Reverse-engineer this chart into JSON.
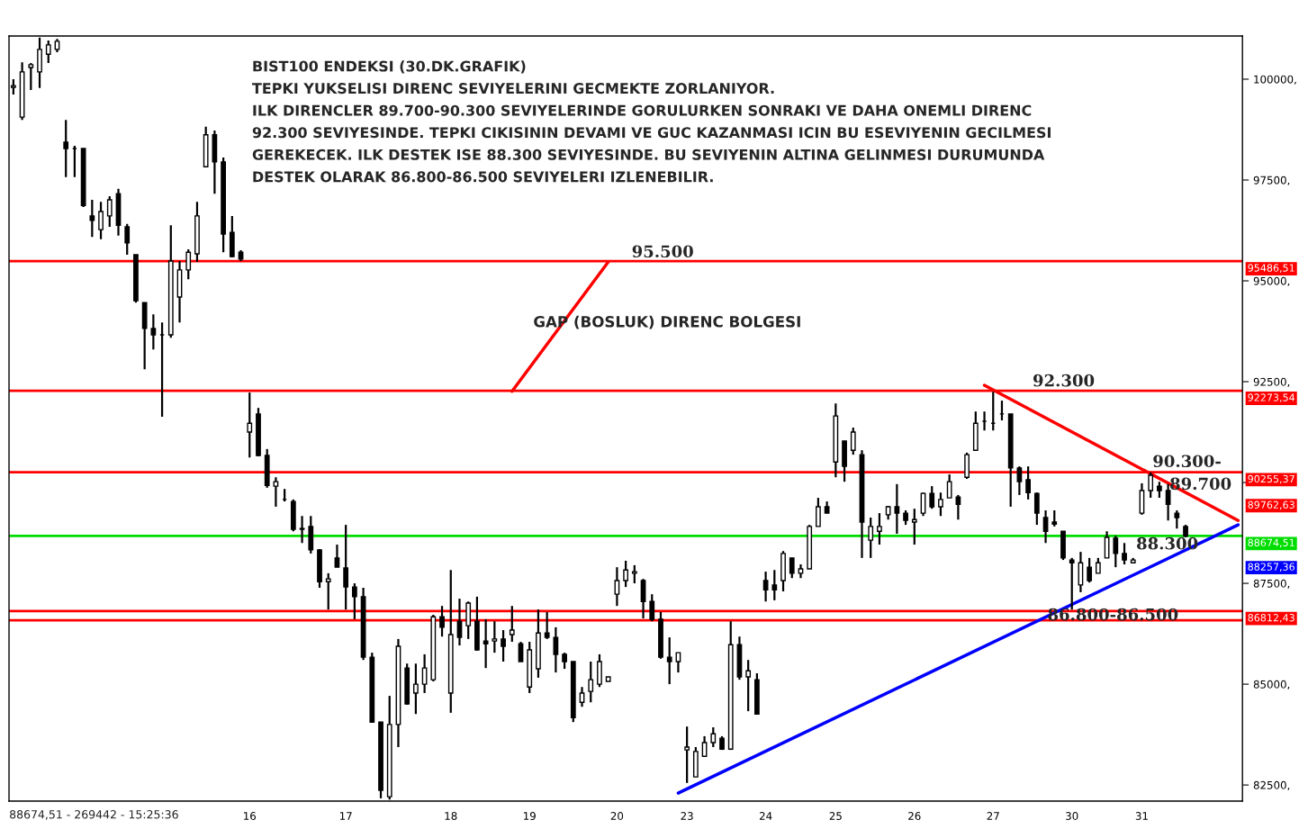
{
  "chart_data": {
    "type": "candlestick",
    "title": "BIST100 ENDEKSI (30.DK.GRAFIK)",
    "subtitle": "TEPKI YUKSELISI DIRENC SEVIYELERINI GECMEKTE ZORLANIYOR.\nILK DIRENCLER 89.700-90.300 SEVIYELERINDE GORULURKEN SONRAKI VE DAHA ONEMLI DIRENC\n92.300 SEVIYESINDE. TEPKI CIKISININ DEVAMI VE GUC KAZANMASI ICIN BU ESEVIYENIN GECILMESI\nGEREKECEK. ILK DESTEK ISE 88.300 SEVIYESINDE. BU SEVIYENIN ALTINA GELINMESI DURUMUNDA\nDESTEK OLARAK 86.800-86.500 SEVIYELERI IZLENEBILIR.",
    "categories": [
      null,
      null,
      null,
      null,
      null,
      null,
      null,
      null,
      null,
      null,
      null,
      null,
      null,
      null,
      null,
      null,
      null,
      null,
      null,
      null,
      null,
      null,
      null,
      null,
      null,
      null,
      null,
      "16",
      null,
      null,
      null,
      null,
      null,
      null,
      null,
      null,
      null,
      null,
      "17",
      null,
      null,
      null,
      null,
      null,
      null,
      null,
      null,
      null,
      null,
      null,
      "18",
      null,
      null,
      null,
      null,
      null,
      null,
      null,
      null,
      "19",
      null,
      null,
      null,
      null,
      null,
      null,
      null,
      null,
      null,
      "20",
      null,
      null,
      null,
      null,
      null,
      null,
      null,
      "23",
      null,
      null,
      null,
      null,
      null,
      null,
      null,
      null,
      "24",
      null,
      null,
      null,
      null,
      null,
      null,
      null,
      "25",
      null,
      null,
      null,
      null,
      null,
      null,
      null,
      null,
      "26",
      null,
      null,
      null,
      null,
      null,
      null,
      null,
      null,
      "27",
      null,
      null,
      null,
      null,
      null,
      null,
      null,
      null,
      "30",
      null,
      null,
      null,
      null,
      null,
      null,
      null,
      "31",
      null,
      null,
      null,
      null,
      null,
      null,
      null,
      null,
      null,
      null,
      null
    ],
    "ohlc": [
      [
        99800,
        100000,
        99620,
        99840
      ],
      [
        99060,
        100420,
        98990,
        100180
      ],
      [
        100290,
        100400,
        99730,
        100360
      ],
      [
        100180,
        101030,
        99780,
        100740
      ],
      [
        100620,
        100960,
        100400,
        100850
      ],
      [
        100740,
        101000,
        100670,
        100940
      ],
      [
        98440,
        98990,
        97570,
        98280
      ],
      [
        98280,
        98350,
        97570,
        98280
      ],
      [
        98280,
        98280,
        96830,
        96870
      ],
      [
        96610,
        97010,
        96090,
        96500
      ],
      [
        96270,
        96960,
        96030,
        96720
      ],
      [
        96610,
        97100,
        96340,
        97010
      ],
      [
        97160,
        97280,
        96120,
        96380
      ],
      [
        96340,
        96410,
        95650,
        95940
      ],
      [
        95650,
        95650,
        94460,
        94510
      ],
      [
        94460,
        94460,
        92810,
        93820
      ],
      [
        93820,
        94170,
        93300,
        93660
      ],
      [
        93660,
        93970,
        91630,
        93660
      ],
      [
        93660,
        96380,
        93590,
        95490
      ],
      [
        94600,
        95490,
        93970,
        95270
      ],
      [
        95270,
        95780,
        95040,
        95710
      ],
      [
        95670,
        96960,
        95470,
        96610
      ],
      [
        97830,
        98820,
        97830,
        98620
      ],
      [
        98620,
        98730,
        97160,
        97950
      ],
      [
        97950,
        98060,
        95710,
        96160
      ],
      [
        96200,
        96610,
        95580,
        95600
      ],
      [
        95710,
        95760,
        95490,
        95540
      ],
      [
        91250,
        92230,
        90620,
        91470
      ],
      [
        91700,
        91850,
        90650,
        90670
      ],
      [
        90670,
        90830,
        89870,
        89930
      ],
      [
        89910,
        90130,
        89400,
        90020
      ],
      [
        89580,
        89840,
        89530,
        89580
      ],
      [
        89530,
        89580,
        88790,
        88840
      ],
      [
        88840,
        89170,
        88500,
        88860
      ],
      [
        88910,
        89170,
        88240,
        88330
      ],
      [
        88330,
        88350,
        87390,
        87540
      ],
      [
        87540,
        87750,
        86850,
        87610
      ],
      [
        88130,
        88460,
        87900,
        87900
      ],
      [
        87880,
        88950,
        86850,
        87410
      ],
      [
        87410,
        87500,
        86610,
        87170
      ],
      [
        87170,
        87390,
        85600,
        85670
      ],
      [
        85670,
        85780,
        84060,
        84060
      ],
      [
        84060,
        84060,
        82170,
        82370
      ],
      [
        82210,
        84710,
        82140,
        84000
      ],
      [
        84000,
        86120,
        83440,
        85940
      ],
      [
        85400,
        85510,
        84490,
        84510
      ],
      [
        84780,
        85510,
        84260,
        85000
      ],
      [
        85000,
        85740,
        84780,
        85400
      ],
      [
        85110,
        86720,
        85070,
        86670
      ],
      [
        86670,
        86940,
        86180,
        86410
      ],
      [
        84780,
        87830,
        84290,
        86230
      ],
      [
        86560,
        87120,
        85960,
        86160
      ],
      [
        86450,
        87050,
        86120,
        87010
      ],
      [
        86560,
        87170,
        85830,
        85850
      ],
      [
        86070,
        86610,
        85400,
        86000
      ],
      [
        86070,
        86560,
        85780,
        86120
      ],
      [
        86120,
        86340,
        85560,
        85940
      ],
      [
        86230,
        86940,
        86050,
        86340
      ],
      [
        86000,
        86050,
        85560,
        85560
      ],
      [
        84930,
        86050,
        84780,
        85850
      ],
      [
        85380,
        86850,
        85160,
        86270
      ],
      [
        86270,
        86790,
        86120,
        86160
      ],
      [
        86160,
        86410,
        85290,
        85740
      ],
      [
        85740,
        85780,
        85380,
        85560
      ],
      [
        85560,
        85560,
        84060,
        84170
      ],
      [
        84550,
        84930,
        84440,
        84780
      ],
      [
        84820,
        85560,
        84550,
        85110
      ],
      [
        85000,
        85740,
        84930,
        85560
      ],
      [
        85070,
        85180,
        85070,
        85180
      ],
      [
        87230,
        87900,
        86940,
        87570
      ],
      [
        87570,
        88060,
        87410,
        87830
      ],
      [
        87750,
        87950,
        87500,
        87790
      ],
      [
        87570,
        87610,
        86630,
        87050
      ],
      [
        87050,
        87230,
        86560,
        86610
      ],
      [
        86610,
        86790,
        85630,
        85670
      ],
      [
        85670,
        86160,
        85000,
        85560
      ],
      [
        85560,
        85780,
        85290,
        85780
      ],
      [
        83370,
        83950,
        82550,
        83440
      ],
      [
        82700,
        83440,
        82700,
        83330
      ],
      [
        83210,
        83710,
        83210,
        83550
      ],
      [
        83550,
        83930,
        83440,
        83770
      ],
      [
        83660,
        83710,
        83370,
        83390
      ],
      [
        83390,
        86560,
        83370,
        85980
      ],
      [
        85980,
        86180,
        85110,
        85180
      ],
      [
        85180,
        85600,
        84330,
        85330
      ],
      [
        85110,
        85270,
        84260,
        84260
      ],
      [
        87570,
        87790,
        87050,
        87340
      ],
      [
        87460,
        87830,
        87080,
        87340
      ],
      [
        87570,
        88300,
        87300,
        88240
      ],
      [
        88130,
        88130,
        87630,
        87750
      ],
      [
        87750,
        87970,
        87630,
        87860
      ],
      [
        87860,
        88950,
        87860,
        88910
      ],
      [
        88910,
        89620,
        88910,
        89400
      ],
      [
        89400,
        89530,
        89240,
        89240
      ],
      [
        90510,
        91960,
        90130,
        91650
      ],
      [
        91030,
        91030,
        90020,
        90400
      ],
      [
        90800,
        91360,
        90690,
        91250
      ],
      [
        90690,
        90800,
        88130,
        89020
      ],
      [
        88570,
        89130,
        88130,
        88910
      ],
      [
        88790,
        89240,
        88460,
        88910
      ],
      [
        89200,
        89420,
        89080,
        89400
      ],
      [
        89400,
        89960,
        88730,
        89240
      ],
      [
        89240,
        89310,
        88950,
        89060
      ],
      [
        89020,
        89350,
        88460,
        89080
      ],
      [
        89240,
        89750,
        89170,
        89730
      ],
      [
        89730,
        89910,
        89350,
        89400
      ],
      [
        89400,
        89750,
        89170,
        89580
      ],
      [
        89620,
        90200,
        89620,
        90020
      ],
      [
        89640,
        89690,
        89080,
        89460
      ],
      [
        90130,
        90740,
        90090,
        90690
      ],
      [
        90800,
        91760,
        90800,
        91470
      ],
      [
        91520,
        91760,
        91290,
        91520
      ],
      [
        91470,
        92250,
        91290,
        91470
      ],
      [
        91700,
        92030,
        91540,
        91700
      ],
      [
        91700,
        91700,
        89400,
        90360
      ],
      [
        90360,
        90400,
        89690,
        90020
      ],
      [
        90070,
        90400,
        89580,
        89750
      ],
      [
        89730,
        89750,
        88950,
        89240
      ],
      [
        89130,
        89310,
        88500,
        88790
      ],
      [
        89020,
        89310,
        88910,
        88970
      ],
      [
        88790,
        88790,
        88080,
        88130
      ],
      [
        88080,
        88130,
        86850,
        88010
      ],
      [
        87460,
        88280,
        87280,
        88010
      ],
      [
        87900,
        88130,
        87520,
        87570
      ],
      [
        87750,
        88130,
        87750,
        88010
      ],
      [
        88130,
        88790,
        88130,
        88640
      ],
      [
        88620,
        88680,
        87900,
        88240
      ],
      [
        88240,
        88500,
        87970,
        88080
      ],
      [
        88010,
        88130,
        88010,
        88080
      ],
      [
        89240,
        89980,
        89200,
        89800
      ],
      [
        89800,
        90250,
        89620,
        90180
      ],
      [
        89910,
        90020,
        89620,
        89800
      ],
      [
        89800,
        89960,
        89060,
        89460
      ],
      [
        89240,
        89310,
        88860,
        89130
      ],
      [
        88910,
        88950,
        88640,
        88670
      ],
      null,
      null,
      null,
      null,
      null,
      null
    ],
    "series": [
      {
        "type": "line",
        "color": "#ff0000",
        "values": [
          null,
          null,
          null,
          null,
          null,
          null,
          null,
          null,
          null,
          null,
          null,
          null,
          null,
          null,
          null,
          null,
          null,
          null,
          null,
          null,
          null,
          null,
          null,
          null,
          null,
          null,
          null,
          null,
          null,
          null,
          null,
          null,
          null,
          null,
          null,
          null,
          null,
          null,
          null,
          null,
          null,
          null,
          null,
          null,
          null,
          null,
          null,
          null,
          null,
          null,
          null,
          null,
          null,
          null,
          null,
          null,
          null,
          null,
          null,
          null,
          null,
          null,
          null,
          null,
          null,
          null,
          null,
          null,
          null,
          null,
          null,
          null,
          null,
          null,
          null,
          null,
          null,
          null,
          null,
          null,
          null,
          null,
          null,
          null,
          null,
          null,
          null,
          null,
          null,
          null,
          null,
          null,
          null,
          null,
          null,
          null,
          null,
          null,
          null,
          null,
          null,
          null,
          null,
          null,
          null,
          null,
          null,
          null,
          null,
          null,
          null,
          92410,
          null,
          null,
          null,
          null,
          null,
          null,
          null,
          null,
          null,
          null,
          null,
          null,
          null,
          null,
          null,
          null,
          null,
          null,
          null,
          null,
          null,
          null,
          null,
          null,
          null,
          null,
          null,
          null,
          89060
        ]
      },
      {
        "type": "line",
        "color": "#0000ff",
        "values": [
          null,
          null,
          null,
          null,
          null,
          null,
          null,
          null,
          null,
          null,
          null,
          null,
          null,
          null,
          null,
          null,
          null,
          null,
          null,
          null,
          null,
          null,
          null,
          null,
          null,
          null,
          null,
          null,
          null,
          null,
          null,
          null,
          null,
          null,
          null,
          null,
          null,
          null,
          null,
          null,
          null,
          null,
          null,
          null,
          null,
          null,
          null,
          null,
          null,
          null,
          null,
          null,
          null,
          null,
          null,
          null,
          null,
          null,
          null,
          null,
          null,
          null,
          null,
          null,
          null,
          null,
          null,
          null,
          null,
          null,
          null,
          null,
          null,
          null,
          null,
          null,
          82300,
          null,
          null,
          null,
          null,
          null,
          null,
          null,
          null,
          null,
          null,
          null,
          null,
          null,
          null,
          null,
          null,
          null,
          null,
          null,
          null,
          null,
          null,
          null,
          null,
          null,
          null,
          null,
          null,
          null,
          null,
          null,
          null,
          null,
          null,
          null,
          null,
          null,
          null,
          null,
          null,
          null,
          null,
          null,
          null,
          null,
          null,
          null,
          null,
          null,
          null,
          null,
          null,
          null,
          null,
          null,
          null,
          null,
          null,
          null,
          null,
          null,
          null,
          null,
          88950
        ]
      },
      {
        "type": "line",
        "color": "#ff0000",
        "values": [
          null,
          null,
          null,
          null,
          null,
          null,
          null,
          null,
          null,
          null,
          null,
          null,
          null,
          null,
          null,
          null,
          null,
          null,
          null,
          null,
          null,
          null,
          null,
          null,
          null,
          null,
          null,
          null,
          null,
          null,
          null,
          null,
          null,
          null,
          null,
          null,
          null,
          null,
          null,
          null,
          null,
          null,
          null,
          null,
          null,
          null,
          null,
          null,
          null,
          null,
          null,
          null,
          null,
          null,
          null,
          null,
          null,
          92260,
          null,
          null,
          null,
          null,
          null,
          null,
          null,
          null,
          null,
          null,
          95470,
          null,
          null,
          null,
          null,
          null,
          null,
          null,
          null,
          null,
          null,
          null,
          null,
          null,
          null,
          null,
          null,
          null,
          null,
          null,
          null,
          null,
          null,
          null,
          null,
          null,
          null,
          null,
          null,
          null,
          null,
          null,
          null,
          null,
          null,
          null,
          null,
          null,
          null,
          null,
          null,
          null,
          null,
          null,
          null,
          null,
          null,
          null,
          null,
          null,
          null,
          null,
          null,
          null,
          null,
          null,
          null,
          null,
          null,
          null,
          null,
          null,
          null,
          null,
          null,
          null,
          null,
          null,
          null,
          null,
          null,
          null,
          null
        ]
      }
    ],
    "ylim": [
      82100,
      101070
    ],
    "yticks": [
      {
        "value": 82500,
        "label": "82500,"
      },
      {
        "value": 85000,
        "label": "85000,"
      },
      {
        "value": 87500,
        "label": "87500,"
      },
      {
        "value": 90000,
        "label": null
      },
      {
        "value": 92500,
        "label": "92500,"
      },
      {
        "value": 95000,
        "label": "95000,"
      },
      {
        "value": 97500,
        "label": "97500,"
      },
      {
        "value": 100000,
        "label": "100000,"
      }
    ],
    "ref_lines": [
      {
        "axis": "y",
        "value": 95486.51,
        "label": "95486,51",
        "color": "#ff0000"
      },
      {
        "axis": "y",
        "value": 92273.54,
        "label": "92273,54",
        "color": "#ff0000"
      },
      {
        "axis": "y",
        "value": 90255.37,
        "label": "90255,37",
        "color": "#ff0000"
      },
      {
        "axis": "y",
        "value": 88674.51,
        "label": "88674,51",
        "color": "#00dd00"
      },
      {
        "axis": "y",
        "value": 86812.43,
        "label": "86812,43",
        "color": "#ff0000"
      },
      {
        "axis": "y",
        "value": 86585,
        "color": "#ff0000"
      }
    ],
    "annotations": [
      {
        "text": "95.500",
        "y": 95500
      },
      "GAP (BOSLUK) DIRENC BOLGESI",
      {
        "text": "92.300",
        "y": 92300
      },
      {
        "text": "90.300-",
        "y": 90300
      },
      "89.700",
      "88.300",
      {
        "text": "86.800-86.500",
        "y": 86500
      },
      "89762,63",
      "88257,36",
      "88674,51 - 269442 - 15:25:36"
    ],
    "grid": false,
    "legend": false
  }
}
